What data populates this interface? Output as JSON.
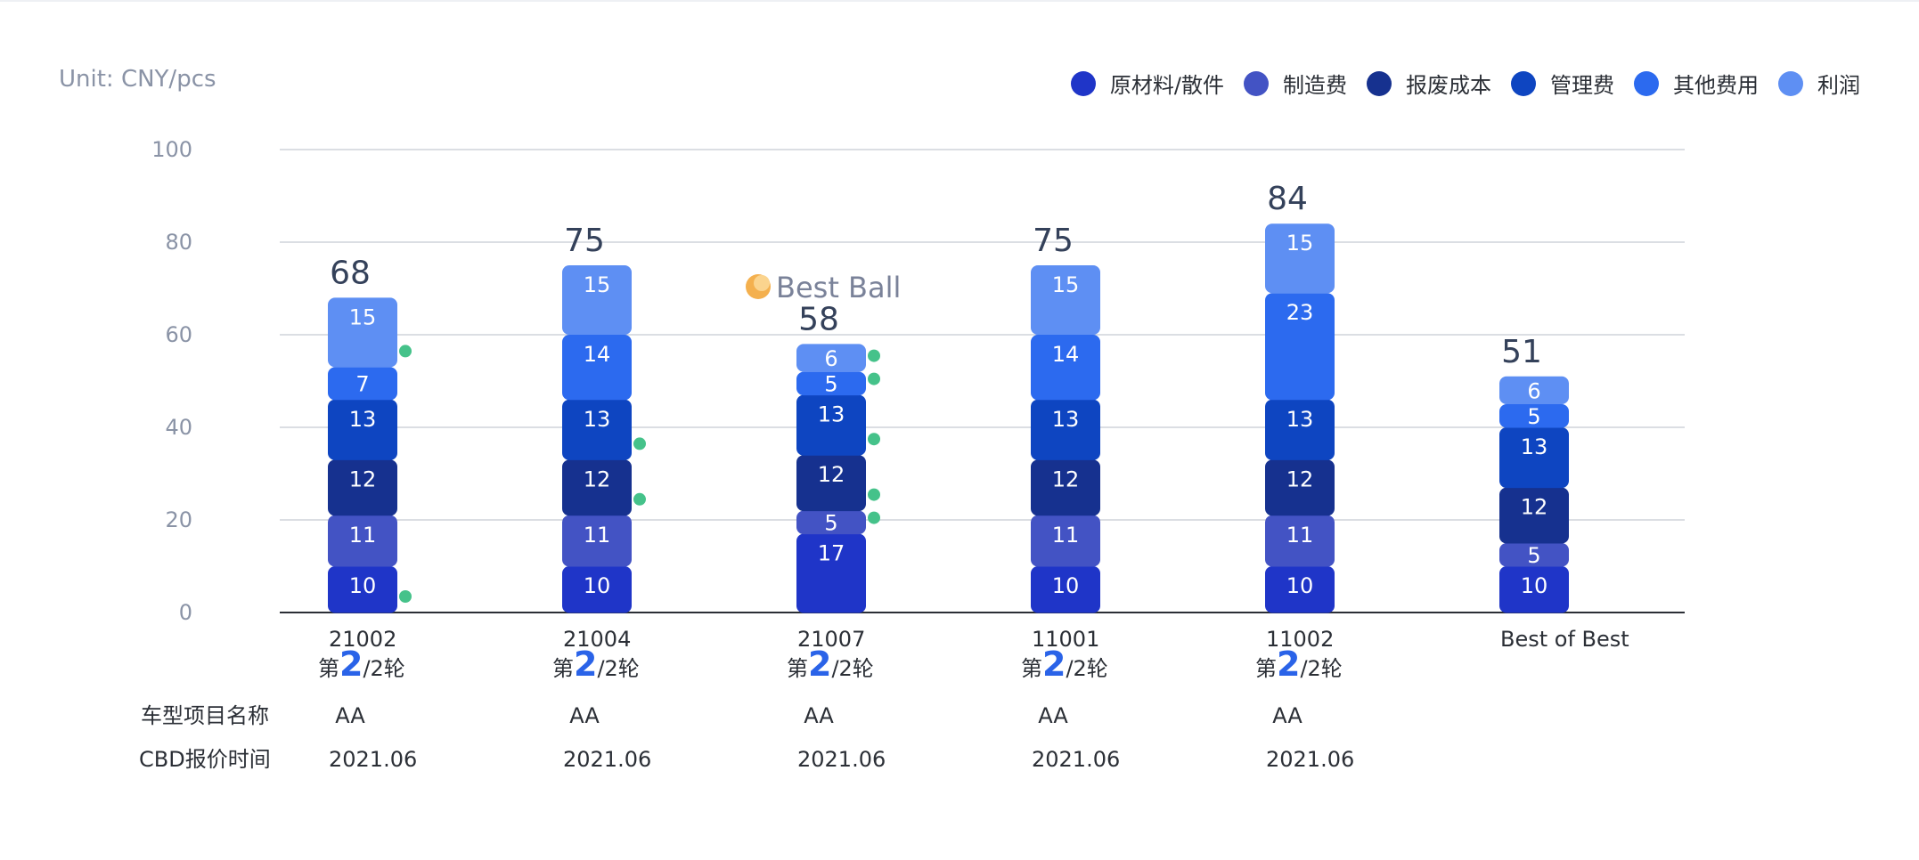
{
  "unit_label": "Unit: CNY/pcs",
  "legend": [
    {
      "label": "原材料/散件",
      "color": "#1f35c8"
    },
    {
      "label": "制造费",
      "color": "#4353c4"
    },
    {
      "label": "报废成本",
      "color": "#16318f"
    },
    {
      "label": "管理费",
      "color": "#0e45c1"
    },
    {
      "label": "其他费用",
      "color": "#2c6aef"
    },
    {
      "label": "利润",
      "color": "#5e8ff3"
    }
  ],
  "highlight": {
    "text": "Best Ball",
    "column": 2,
    "icon": "ball-icon",
    "marker_color": "#45c28a"
  },
  "rows": {
    "vehicle_label": "车型项目名称",
    "date_label": "CBD报价时间",
    "round_prefix": "第",
    "round_number": "2",
    "round_suffix": "/2轮"
  },
  "chart_data": {
    "type": "bar",
    "stacked": true,
    "categories": [
      "21002",
      "21004",
      "21007",
      "11001",
      "11002",
      "Best of Best"
    ],
    "show_round": [
      true,
      true,
      true,
      true,
      true,
      false
    ],
    "vehicle": [
      "AA",
      "AA",
      "AA",
      "AA",
      "AA",
      ""
    ],
    "dates": [
      "2021.06",
      "2021.06",
      "2021.06",
      "2021.06",
      "2021.06",
      ""
    ],
    "totals": [
      68,
      75,
      58,
      75,
      84,
      51
    ],
    "series": [
      {
        "name": "原材料/散件",
        "values": [
          10,
          10,
          17,
          10,
          10,
          10
        ]
      },
      {
        "name": "制造费",
        "values": [
          11,
          11,
          5,
          11,
          11,
          5
        ]
      },
      {
        "name": "报废成本",
        "values": [
          12,
          12,
          12,
          12,
          12,
          12
        ]
      },
      {
        "name": "管理费",
        "values": [
          13,
          13,
          13,
          13,
          13,
          13
        ]
      },
      {
        "name": "其他费用",
        "values": [
          7,
          14,
          5,
          14,
          23,
          5
        ]
      },
      {
        "name": "利润",
        "values": [
          15,
          15,
          6,
          15,
          15,
          6
        ]
      }
    ],
    "best_markers": [
      [
        true,
        false,
        false,
        false,
        false,
        false
      ],
      [
        false,
        false,
        true,
        false,
        false,
        false
      ],
      [
        false,
        true,
        true,
        false,
        false,
        false
      ],
      [
        false,
        true,
        true,
        false,
        false,
        false
      ],
      [
        false,
        false,
        true,
        false,
        false,
        false
      ],
      [
        true,
        false,
        true,
        false,
        false,
        false
      ]
    ],
    "yticks": [
      0,
      20,
      40,
      60,
      80,
      100
    ],
    "ylim": [
      0,
      100
    ],
    "grid": true,
    "legend_position": "top-right"
  }
}
